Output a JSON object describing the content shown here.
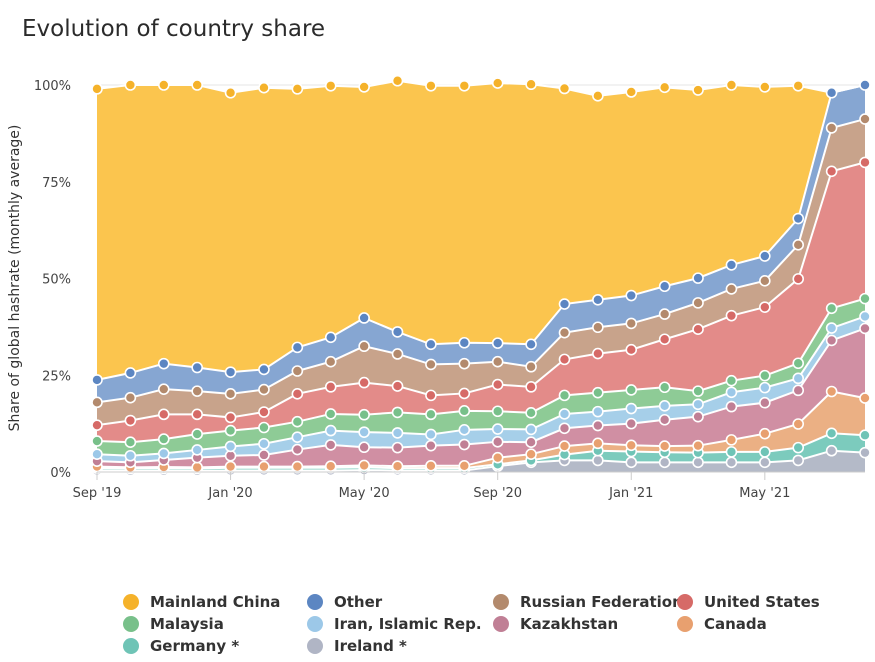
{
  "page": {
    "title": "Evolution of country share"
  },
  "chart_data": {
    "type": "area",
    "stacked": true,
    "title": "Evolution of country share",
    "ylabel": "Share of global hashrate (monthly average)",
    "xlabel": "",
    "ylim": [
      0,
      100
    ],
    "y_ticks": [
      "0%",
      "25%",
      "50%",
      "75%",
      "100%"
    ],
    "y_tick_values": [
      0,
      25,
      50,
      75,
      100
    ],
    "x": [
      "Sep 2019",
      "Oct 2019",
      "Nov 2019",
      "Dec 2019",
      "Jan 2020",
      "Feb 2020",
      "Mar 2020",
      "Apr 2020",
      "May 2020",
      "Jun 2020",
      "Jul 2020",
      "Aug 2020",
      "Sep 2020",
      "Oct 2020",
      "Nov 2020",
      "Dec 2020",
      "Jan 2021",
      "Feb 2021",
      "Mar 2021",
      "Apr 2021",
      "May 2021",
      "Jun 2021",
      "Jul 2021",
      "Aug 2021"
    ],
    "x_ticks": [
      "Sep '19",
      "Jan '20",
      "May '20",
      "Sep '20",
      "Jan '21",
      "May '21"
    ],
    "x_tick_index": [
      0,
      4,
      8,
      12,
      16,
      20
    ],
    "legend_position": "bottom",
    "series": [
      {
        "name": "Ireland *",
        "color": "#b4bac8",
        "values": [
          0.4,
          0.3,
          0.3,
          0.3,
          0.4,
          0.4,
          0.4,
          0.4,
          0.5,
          0.4,
          0.4,
          0.4,
          1.5,
          2.5,
          3.0,
          3.0,
          2.5,
          2.5,
          2.5,
          2.5,
          2.5,
          3.0,
          5.5,
          5.0
        ]
      },
      {
        "name": "Germany *",
        "color": "#7ccbbd",
        "values": [
          0.6,
          0.6,
          0.6,
          0.6,
          0.7,
          0.7,
          0.7,
          0.7,
          0.7,
          0.6,
          0.6,
          0.6,
          0.5,
          0.5,
          1.5,
          2.5,
          2.8,
          2.6,
          2.5,
          2.7,
          2.7,
          3.3,
          4.5,
          4.5
        ]
      },
      {
        "name": "Canada",
        "color": "#ebb084",
        "values": [
          0.4,
          0.3,
          0.4,
          0.3,
          0.3,
          0.3,
          0.3,
          0.4,
          0.5,
          0.5,
          0.6,
          0.6,
          1.7,
          1.6,
          2.2,
          1.9,
          1.6,
          1.6,
          1.8,
          3.1,
          4.7,
          6.1,
          10.8,
          9.6
        ]
      },
      {
        "name": "Kazakhstan",
        "color": "#d08fa3",
        "values": [
          1.4,
          1.3,
          1.8,
          2.5,
          2.8,
          3.0,
          4.4,
          5.5,
          4.7,
          4.8,
          5.2,
          5.5,
          4.1,
          3.1,
          4.6,
          4.6,
          5.6,
          6.8,
          7.5,
          8.6,
          8.0,
          8.7,
          13.2,
          18.0
        ]
      },
      {
        "name": "Iran, Islamic Rep.",
        "color": "#a6cfe9",
        "values": [
          1.8,
          1.7,
          1.7,
          2.0,
          2.4,
          2.9,
          3.2,
          3.7,
          3.9,
          3.8,
          2.9,
          3.8,
          3.3,
          3.3,
          3.7,
          3.6,
          3.9,
          3.6,
          3.2,
          3.7,
          3.9,
          3.1,
          3.2,
          3.1
        ]
      },
      {
        "name": "Malaysia",
        "color": "#8ecb96",
        "values": [
          3.4,
          3.5,
          3.7,
          4.1,
          4.1,
          4.2,
          4.0,
          4.3,
          4.5,
          5.3,
          5.2,
          4.9,
          4.6,
          4.3,
          4.8,
          4.9,
          4.8,
          4.8,
          3.4,
          3.0,
          3.1,
          3.9,
          5.1,
          4.6
        ]
      },
      {
        "name": "United States",
        "color": "#e38b89",
        "values": [
          4.1,
          5.6,
          6.4,
          5.1,
          3.4,
          4.0,
          7.2,
          7.0,
          8.3,
          6.8,
          4.9,
          4.5,
          6.9,
          6.7,
          9.3,
          10.1,
          10.4,
          12.4,
          16.0,
          16.8,
          17.7,
          21.8,
          35.4,
          35.2
        ]
      },
      {
        "name": "Russian Federation",
        "color": "#c8a38b",
        "values": [
          5.9,
          5.9,
          6.5,
          6.0,
          6.1,
          5.8,
          5.9,
          6.5,
          9.4,
          8.3,
          8.0,
          7.7,
          5.9,
          5.2,
          6.9,
          6.8,
          6.8,
          6.5,
          6.8,
          6.9,
          6.8,
          8.8,
          11.2,
          11.2
        ]
      },
      {
        "name": "Other",
        "color": "#86a6d2",
        "values": [
          5.8,
          6.4,
          6.6,
          6.1,
          5.6,
          5.2,
          6.1,
          6.3,
          7.3,
          5.7,
          5.2,
          5.4,
          4.8,
          5.8,
          7.4,
          7.1,
          7.2,
          7.2,
          6.4,
          6.2,
          6.4,
          6.8,
          9.1,
          8.8
        ]
      },
      {
        "name": "Mainland China",
        "color": "#fbc54e",
        "values": [
          75.2,
          74.4,
          72.0,
          73.0,
          72.2,
          72.8,
          66.8,
          65.0,
          59.7,
          64.9,
          66.8,
          66.4,
          67.2,
          67.2,
          55.7,
          52.7,
          52.6,
          51.4,
          48.6,
          46.5,
          43.7,
          34.3,
          0.0,
          0.0
        ]
      }
    ]
  },
  "legend": {
    "items": [
      {
        "label": "Mainland China",
        "color": "#f5b22a"
      },
      {
        "label": "Other",
        "color": "#5c86c2"
      },
      {
        "label": "Russian Federation",
        "color": "#b38a6d"
      },
      {
        "label": "United States",
        "color": "#d66a67"
      },
      {
        "label": "Malaysia",
        "color": "#78c08a"
      },
      {
        "label": "Iran, Islamic Rep.",
        "color": "#9cc8e8"
      },
      {
        "label": "Kazakhstan",
        "color": "#c07f95"
      },
      {
        "label": "Canada",
        "color": "#e8a06f"
      },
      {
        "label": "Germany *",
        "color": "#6fc4b6"
      },
      {
        "label": "Ireland *",
        "color": "#b0b5c5"
      }
    ]
  }
}
